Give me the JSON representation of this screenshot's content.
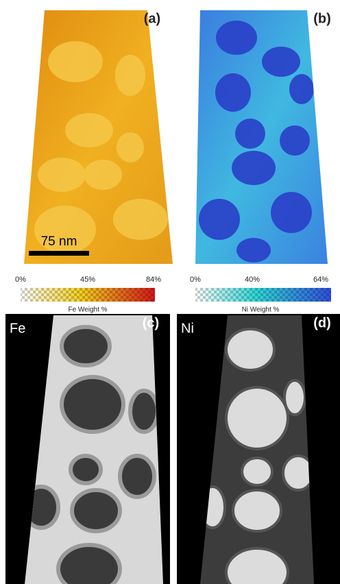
{
  "panels": [
    {
      "label": "(a)",
      "scale_bar": "75 nm",
      "colorbar": {
        "ticks": [
          "0%",
          "45%",
          "84%"
        ],
        "title": "Fe Weight %"
      }
    },
    {
      "label": "(b)",
      "colorbar": {
        "ticks": [
          "0%",
          "40%",
          "64%"
        ],
        "title": "Ni Weight %"
      }
    },
    {
      "label": "(c)",
      "element": "Fe"
    },
    {
      "label": "(d)",
      "element": "Ni"
    }
  ]
}
